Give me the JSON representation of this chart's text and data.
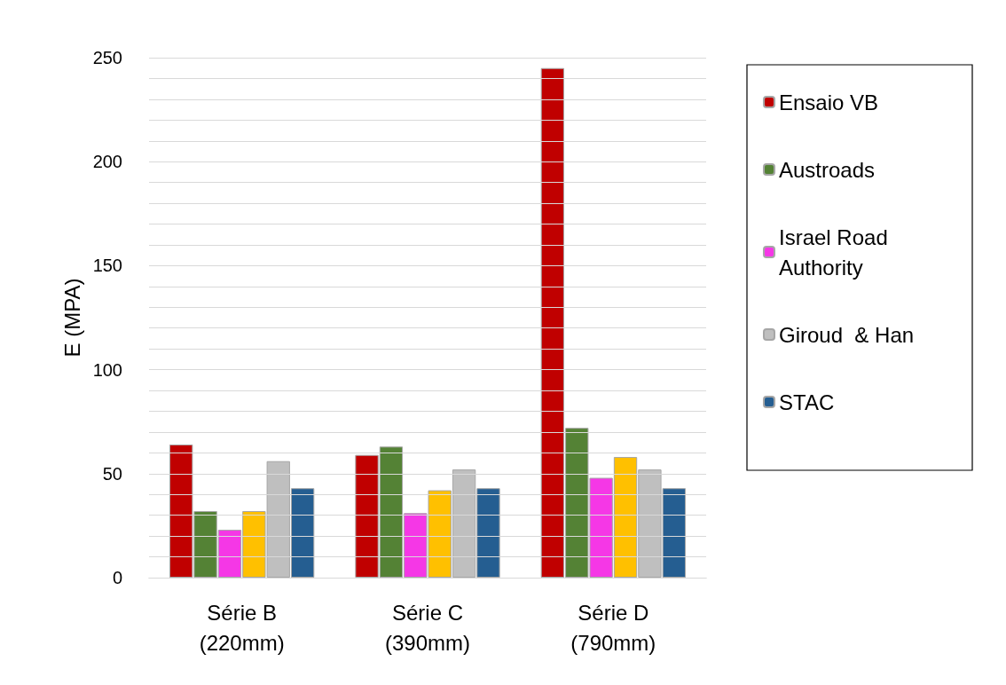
{
  "chart_data": {
    "type": "bar",
    "ylabel": "E (MPA)",
    "categories": [
      "Série B\n(220mm)",
      "Série C\n(390mm)",
      "Série D\n(790mm)"
    ],
    "series": [
      {
        "name": "Ensaio VB",
        "color": "#c00000",
        "values": [
          64,
          59,
          245
        ]
      },
      {
        "name": "Austroads",
        "color": "#548235",
        "values": [
          32,
          63,
          72
        ]
      },
      {
        "name": "Israel Road Authority",
        "color": "#f537e6",
        "values": [
          23,
          31,
          48
        ]
      },
      {
        "color": "#ffc000",
        "values": [
          32,
          42,
          58
        ]
      },
      {
        "name": "Giroud  & Han",
        "color": "#bfbfbf",
        "values": [
          56,
          52,
          52
        ]
      },
      {
        "name": "STAC",
        "color": "#255e91",
        "values": [
          43,
          43,
          43
        ]
      }
    ],
    "ylim": [
      0,
      250
    ],
    "yticks": [
      0,
      {
        "value": 10,
        "label": null
      },
      {
        "value": 20,
        "label": null
      },
      {
        "value": 30,
        "label": null
      },
      {
        "value": 40,
        "label": null
      },
      50,
      {
        "value": 60,
        "label": null
      },
      {
        "value": 70,
        "label": null
      },
      {
        "value": 80,
        "label": null
      },
      {
        "value": 90,
        "label": null
      },
      100,
      {
        "value": 110,
        "label": null
      },
      {
        "value": 120,
        "label": null
      },
      {
        "value": 130,
        "label": null
      },
      {
        "value": 140,
        "label": null
      },
      150,
      {
        "value": 160,
        "label": null
      },
      {
        "value": 170,
        "label": null
      },
      {
        "value": 180,
        "label": null
      },
      {
        "value": 190,
        "label": null
      },
      200,
      {
        "value": 210,
        "label": null
      },
      {
        "value": 220,
        "label": null
      },
      {
        "value": 230,
        "label": null
      },
      {
        "value": 240,
        "label": null
      },
      250
    ],
    "grid": "y",
    "legend": "right"
  }
}
